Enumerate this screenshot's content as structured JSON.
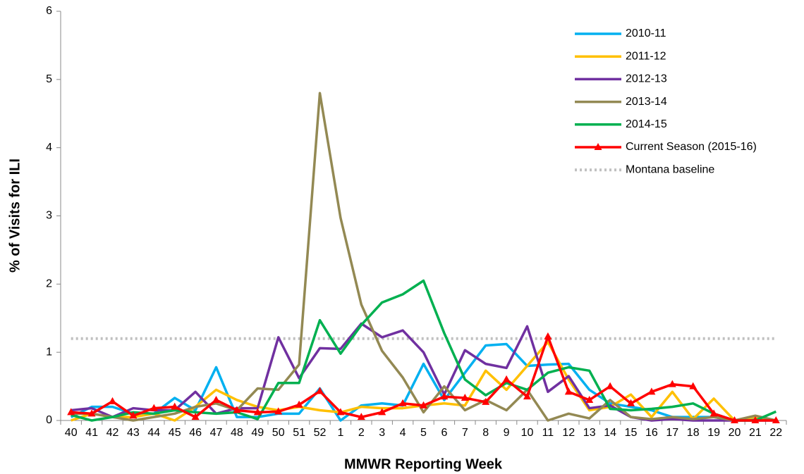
{
  "chart_data": {
    "type": "line",
    "y_label": "% of Visits for ILI",
    "x_label": "MMWR Reporting Week",
    "categories": [
      "40",
      "41",
      "42",
      "43",
      "44",
      "45",
      "46",
      "47",
      "48",
      "49",
      "50",
      "51",
      "52",
      "1",
      "2",
      "3",
      "4",
      "5",
      "6",
      "7",
      "8",
      "9",
      "10",
      "11",
      "12",
      "13",
      "14",
      "15",
      "16",
      "17",
      "18",
      "19",
      "20",
      "21",
      "22"
    ],
    "ylim": [
      0,
      6
    ],
    "yticks": [
      0,
      1,
      2,
      3,
      4,
      5,
      6
    ],
    "series": [
      {
        "name": "2010-11",
        "color": "#00b0f0",
        "values": [
          0.05,
          0.2,
          0.2,
          0.1,
          0.1,
          0.33,
          0.15,
          0.78,
          0.05,
          0.05,
          0.1,
          0.1,
          0.47,
          0.0,
          0.22,
          0.25,
          0.22,
          0.83,
          0.3,
          0.7,
          1.1,
          1.12,
          0.8,
          0.82,
          0.83,
          0.45,
          0.25,
          0.2,
          0.15,
          0.05,
          0.05,
          0.05,
          0.0,
          0.02,
          0.0
        ]
      },
      {
        "name": "2011-12",
        "color": "#ffc000",
        "values": [
          0.0,
          0.1,
          0.05,
          0.05,
          0.1,
          0.0,
          0.2,
          0.45,
          0.3,
          0.2,
          0.15,
          0.2,
          0.15,
          0.12,
          0.2,
          0.18,
          0.18,
          0.22,
          0.25,
          0.22,
          0.73,
          0.45,
          0.8,
          1.15,
          0.6,
          0.15,
          0.2,
          0.38,
          0.05,
          0.42,
          0.02,
          0.32,
          0.0,
          0.05,
          0.0
        ]
      },
      {
        "name": "2012-13",
        "color": "#7030a0",
        "values": [
          0.15,
          0.18,
          0.05,
          0.18,
          0.15,
          0.15,
          0.42,
          0.1,
          0.18,
          0.18,
          1.22,
          0.62,
          1.06,
          1.05,
          1.42,
          1.22,
          1.32,
          1.0,
          0.38,
          1.03,
          0.83,
          0.77,
          1.38,
          0.42,
          0.65,
          0.18,
          0.22,
          0.05,
          0.0,
          0.02,
          0.0,
          0.0,
          0.0,
          0.0,
          0.0
        ]
      },
      {
        "name": "2013-14",
        "color": "#938953",
        "values": [
          0.1,
          0.1,
          0.05,
          0.0,
          0.05,
          0.1,
          0.2,
          0.25,
          0.15,
          0.47,
          0.45,
          0.82,
          4.8,
          2.97,
          1.7,
          1.02,
          0.63,
          0.12,
          0.5,
          0.15,
          0.3,
          0.15,
          0.45,
          0.0,
          0.1,
          0.03,
          0.3,
          0.05,
          0.02,
          0.05,
          0.02,
          0.05,
          0.0,
          0.07,
          0.0
        ]
      },
      {
        "name": "2014-15",
        "color": "#00b050",
        "values": [
          0.08,
          0.0,
          0.05,
          0.12,
          0.1,
          0.15,
          0.12,
          0.1,
          0.12,
          0.02,
          0.55,
          0.55,
          1.47,
          0.98,
          1.4,
          1.73,
          1.85,
          2.05,
          1.28,
          0.6,
          0.37,
          0.55,
          0.45,
          0.7,
          0.78,
          0.73,
          0.17,
          0.15,
          0.17,
          0.2,
          0.25,
          0.1,
          0.0,
          0.0,
          0.13
        ]
      },
      {
        "name": "Current Season (2015-16)",
        "color": "#ff0000",
        "marker": "triangle",
        "values": [
          0.12,
          0.1,
          0.28,
          0.07,
          0.18,
          0.2,
          0.05,
          0.3,
          0.15,
          0.12,
          0.13,
          0.23,
          0.43,
          0.12,
          0.05,
          0.12,
          0.25,
          0.22,
          0.35,
          0.33,
          0.27,
          0.6,
          0.35,
          1.23,
          0.42,
          0.3,
          0.5,
          0.25,
          0.42,
          0.53,
          0.5,
          0.1,
          0.0,
          0.0,
          0.0
        ]
      }
    ],
    "baseline": {
      "name": "Montana baseline",
      "value": 1.2,
      "color": "#c0c0c0",
      "style": "dotted"
    }
  }
}
